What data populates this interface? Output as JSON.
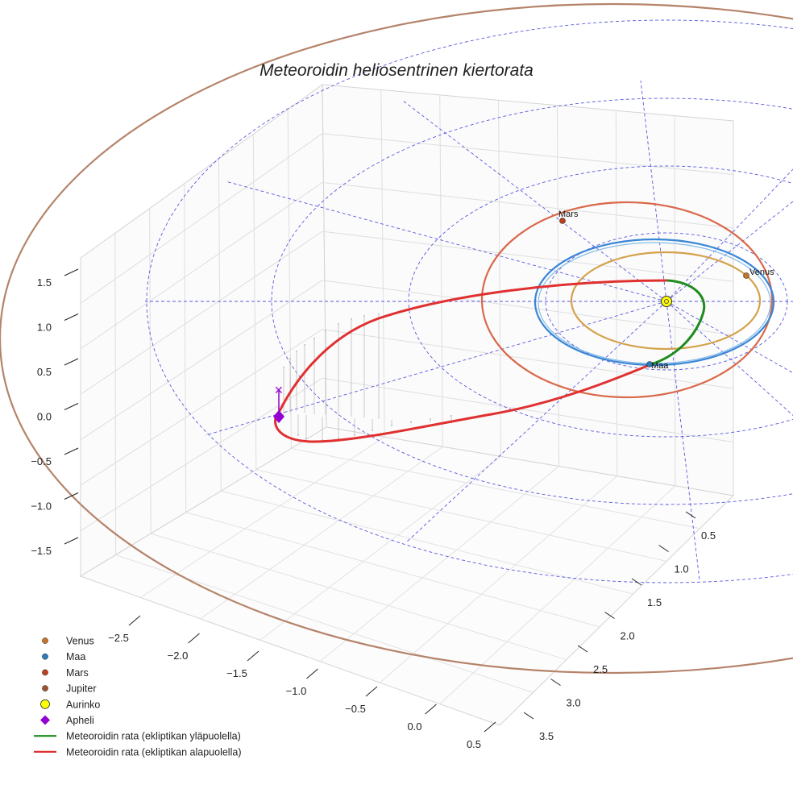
{
  "chart_data": {
    "type": "scatter",
    "title": "Meteoroidin heliosentrinen kiertorata",
    "view": "3d",
    "axes": {
      "x": {
        "ticks": [
          "−2.5",
          "−2.0",
          "−1.5",
          "−1.0",
          "−0.5",
          "0.0",
          "0.5"
        ],
        "range": [
          -2.9,
          0.6
        ]
      },
      "y": {
        "ticks": [
          "0.5",
          "1.0",
          "1.5",
          "2.0",
          "2.5",
          "3.0",
          "3.5"
        ],
        "range": [
          0.2,
          3.6
        ]
      },
      "z": {
        "ticks": [
          "1.5",
          "1.0",
          "0.5",
          "0.0",
          "−0.5",
          "−1.0",
          "−1.5"
        ],
        "range": [
          -1.9,
          1.7
        ]
      }
    },
    "planets": [
      {
        "name": "Venus",
        "label": "Venus",
        "color": "#c8742a",
        "orbit_color": "#d4a24c",
        "semi_major_au": 0.72
      },
      {
        "name": "Maa",
        "label": "Maa",
        "color": "#2c7bbf",
        "orbit_color": "#3a86d6",
        "semi_major_au": 1.0
      },
      {
        "name": "Mars",
        "label": "Mars",
        "color": "#c0401c",
        "orbit_color": "#d9694a",
        "semi_major_au": 1.52
      },
      {
        "name": "Jupiter",
        "label": "",
        "color": "#a0522d",
        "orbit_color": "#b5836a",
        "semi_major_au": 5.2
      }
    ],
    "sun": {
      "name": "Aurinko",
      "color": "#ffff00"
    },
    "aphelion": {
      "name": "Apheli",
      "color": "#9400d3"
    },
    "meteoroid": {
      "above_label": "Meteoroidin rata (ekliptikan yläpuolella)",
      "below_label": "Meteoroidin rata (ekliptikan alapuolella)",
      "above_color": "#1e8c1e",
      "below_color": "#e03030"
    },
    "legend": {
      "position": "bottom-left",
      "entries": [
        {
          "label": "Venus",
          "marker": "circle",
          "color": "#c8742a"
        },
        {
          "label": "Maa",
          "marker": "circle",
          "color": "#2c7bbf"
        },
        {
          "label": "Mars",
          "marker": "circle",
          "color": "#c0401c"
        },
        {
          "label": "Jupiter",
          "marker": "circle",
          "color": "#a0522d"
        },
        {
          "label": "Aurinko",
          "marker": "circle-large",
          "color": "#ffff00"
        },
        {
          "label": "Apheli",
          "marker": "diamond",
          "color": "#9400d3"
        },
        {
          "label": "Meteoroidin rata (ekliptikan yläpuolella)",
          "marker": "line",
          "color": "#1e8c1e"
        },
        {
          "label": "Meteoroidin rata (ekliptikan alapuolella)",
          "marker": "line",
          "color": "#e03030"
        }
      ]
    }
  }
}
